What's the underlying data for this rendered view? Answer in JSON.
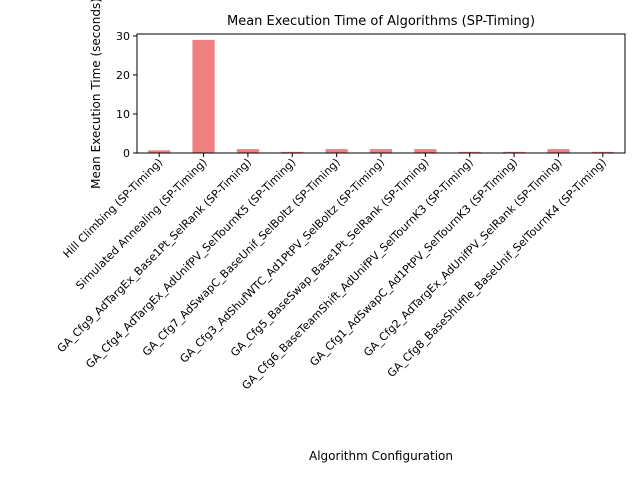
{
  "chart_data": {
    "type": "bar",
    "title": "Mean Execution Time of Algorithms (SP-Timing)",
    "xlabel": "Algorithm Configuration",
    "ylabel": "Mean Execution Time (seconds)",
    "ylim": [
      0,
      30.5
    ],
    "yticks": [
      0,
      10,
      20,
      30
    ],
    "grid": false,
    "bar_color": "#f08080",
    "categories": [
      "Hill Climbing (SP-Timing)",
      "Simulated Annealing (SP-Timing)",
      "GA_Cfg9_AdTargEx_Base1Pt_SelRank (SP-Timing)",
      "GA_Cfg4_AdTargEx_AdUnifPV_SelTournK5 (SP-Timing)",
      "GA_Cfg7_AdSwapC_BaseUnif_SelBoltz (SP-Timing)",
      "GA_Cfg3_AdShufWTC_Ad1PtPV_SelBoltz (SP-Timing)",
      "GA_Cfg5_BaseSwap_Base1Pt_SelRank (SP-Timing)",
      "GA_Cfg6_BaseTeamShift_AdUnifPV_SelTournK3 (SP-Timing)",
      "GA_Cfg1_AdSwapC_Ad1PtPV_SelTournK3 (SP-Timing)",
      "GA_Cfg2_AdTargEx_AdUnifPV_SelRank (SP-Timing)",
      "GA_Cfg8_BaseShuffle_BaseUnif_SelTournK4 (SP-Timing)"
    ],
    "values": [
      0.7,
      29.0,
      1.0,
      0.3,
      1.0,
      1.0,
      1.0,
      0.3,
      0.3,
      1.0,
      0.3
    ]
  }
}
